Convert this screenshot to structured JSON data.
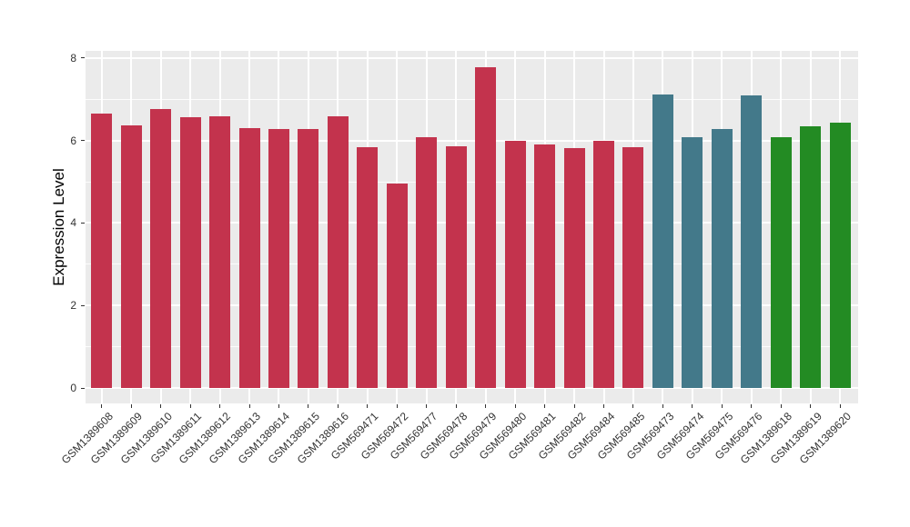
{
  "figure": {
    "background": "#FFFFFF",
    "panel_background": "#EBEBEB",
    "grid_color": "#FFFFFF",
    "tick_mark_color": "#333333",
    "axis_text_color": "#333333",
    "axis_title_color": "#000000"
  },
  "chart_data": {
    "type": "bar",
    "title": "",
    "xlabel": "",
    "ylabel": "Expression Level",
    "ylim": [
      0,
      8.17
    ],
    "yticks": [
      0,
      2,
      4,
      6,
      8
    ],
    "yticks_minor": [
      1,
      3,
      5,
      7
    ],
    "grid": true,
    "legend": false,
    "categories": [
      "GSM1389608",
      "GSM1389609",
      "GSM1389610",
      "GSM1389611",
      "GSM1389612",
      "GSM1389613",
      "GSM1389614",
      "GSM1389615",
      "GSM1389616",
      "GSM569471",
      "GSM569472",
      "GSM569477",
      "GSM569478",
      "GSM569479",
      "GSM569480",
      "GSM569481",
      "GSM569482",
      "GSM569484",
      "GSM569485",
      "GSM569473",
      "GSM569474",
      "GSM569475",
      "GSM569476",
      "GSM1389618",
      "GSM1389619",
      "GSM1389620"
    ],
    "values": [
      6.65,
      6.37,
      6.76,
      6.56,
      6.58,
      6.29,
      6.27,
      6.28,
      6.58,
      5.83,
      4.95,
      6.08,
      5.86,
      7.77,
      6.0,
      5.91,
      5.81,
      6.0,
      5.83,
      7.12,
      6.08,
      6.27,
      7.09,
      6.08,
      6.34,
      6.43
    ],
    "bar_colors": [
      "#C3334D",
      "#C3334D",
      "#C3334D",
      "#C3334D",
      "#C3334D",
      "#C3334D",
      "#C3334D",
      "#C3334D",
      "#C3334D",
      "#C3334D",
      "#C3334D",
      "#C3334D",
      "#C3334D",
      "#C3334D",
      "#C3334D",
      "#C3334D",
      "#C3334D",
      "#C3334D",
      "#C3334D",
      "#43798A",
      "#43798A",
      "#43798A",
      "#43798A",
      "#238B23",
      "#238B23",
      "#238B23"
    ],
    "palette": [
      "#C3334D",
      "#43798A",
      "#238B23"
    ]
  }
}
